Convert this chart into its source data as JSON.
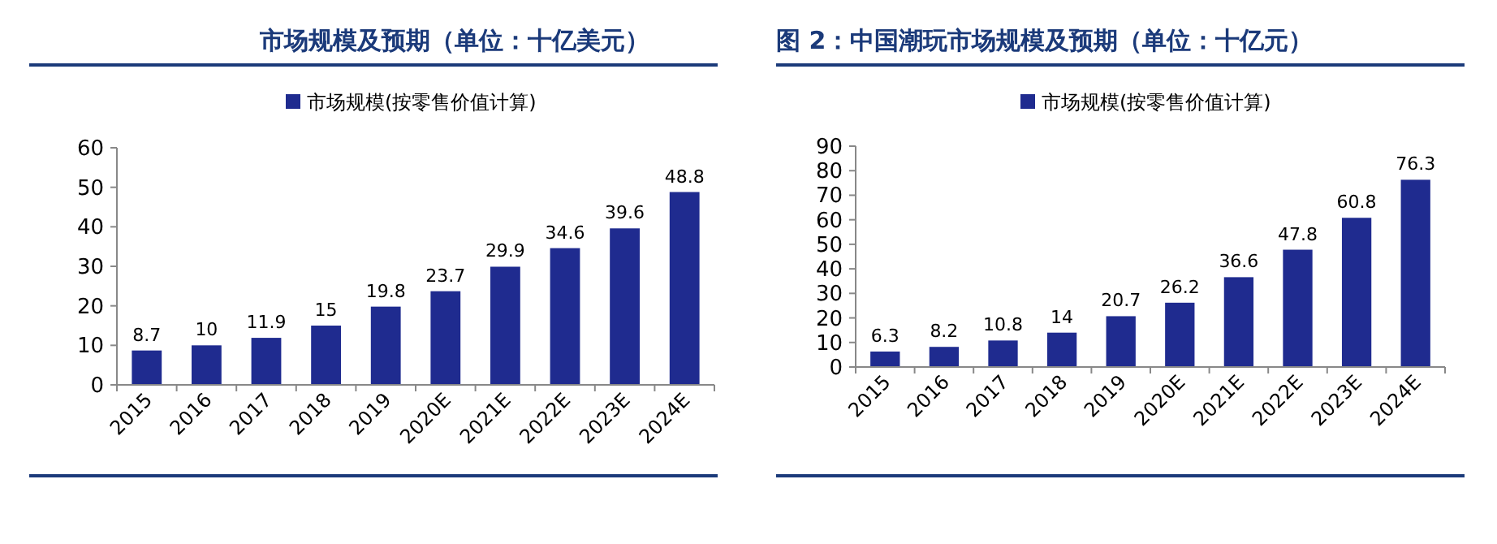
{
  "chart_data": [
    {
      "type": "bar",
      "title": "市场规模及预期（单位：十亿美元）",
      "categories": [
        "2015",
        "2016",
        "2017",
        "2018",
        "2019",
        "2020E",
        "2021E",
        "2022E",
        "2023E",
        "2024E"
      ],
      "series": [
        {
          "name": "市场规模(按零售价值计算)",
          "color": "#1f2b8f",
          "values": [
            8.7,
            10,
            11.9,
            15,
            19.8,
            23.7,
            29.9,
            34.6,
            39.6,
            48.8
          ]
        }
      ],
      "ylim": [
        0,
        60
      ],
      "yticks": [
        0,
        10,
        20,
        30,
        40,
        50,
        60
      ],
      "data_labels": true,
      "legend": "top"
    },
    {
      "type": "bar",
      "title": "图 2：中国潮玩市场规模及预期（单位：十亿元）",
      "categories": [
        "2015",
        "2016",
        "2017",
        "2018",
        "2019",
        "2020E",
        "2021E",
        "2022E",
        "2023E",
        "2024E"
      ],
      "series": [
        {
          "name": "市场规模(按零售价值计算)",
          "color": "#1f2b8f",
          "values": [
            6.3,
            8.2,
            10.8,
            14,
            20.7,
            26.2,
            36.6,
            47.8,
            60.8,
            76.3
          ]
        }
      ],
      "ylim": [
        0,
        90
      ],
      "yticks": [
        0,
        10,
        20,
        30,
        40,
        50,
        60,
        70,
        80,
        90
      ],
      "data_labels": true,
      "legend": "top"
    }
  ]
}
